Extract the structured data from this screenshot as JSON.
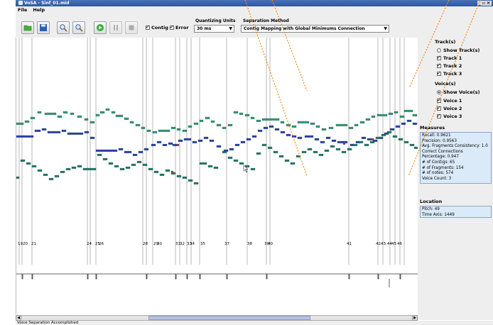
{
  "window": {
    "title": "VoSA - Sinf_01.mid",
    "controls": "_ ▫ ×"
  },
  "menu": {
    "items": [
      "File",
      "Help"
    ]
  },
  "toolbar": {
    "buttons": [
      "open-file",
      "save",
      "zoom-in",
      "zoom-out",
      "play",
      "pause",
      "stop"
    ],
    "contig_label": "Contig",
    "error_label": "Error",
    "contig_checked": true,
    "error_checked": true,
    "quantizing": {
      "label": "Quantizing Units",
      "value": "30 ms"
    },
    "separation": {
      "label": "Separation Method",
      "value": "Contig Mapping with Global Minimums Connection"
    }
  },
  "tracks": {
    "title": "Track(s)",
    "show_label": "Show Track(s)",
    "show_selected": false,
    "items": [
      {
        "label": "Track 1",
        "checked": true
      },
      {
        "label": "Track 2",
        "checked": true
      },
      {
        "label": "Track 3",
        "checked": true
      }
    ]
  },
  "voices": {
    "title": "Voice(s)",
    "show_label": "Show Voice(s)",
    "show_selected": true,
    "items": [
      {
        "label": "Voice 1",
        "checked": true
      },
      {
        "label": "Voice 2",
        "checked": true
      },
      {
        "label": "Voice 3",
        "checked": true
      }
    ]
  },
  "measures": {
    "title": "Measures",
    "lines": [
      "Recall: 0.9621",
      "Precision: 0.9563",
      "Avg. Fragments Consistency: 1.0",
      "Correct Connections",
      "Percentage: 0.947",
      "# of Contigs: 65",
      "# of Fragments: 154",
      "# of notes: 574",
      "Voice Count: 3"
    ]
  },
  "location": {
    "title": "Location",
    "lines": [
      "Pitch: 49",
      "Time Axis: 1449"
    ]
  },
  "plot": {
    "measure_labels": [
      "19",
      "20",
      "21",
      "24",
      "25",
      "26",
      "28",
      "29",
      "30",
      "31",
      "32",
      "33",
      "34",
      "35",
      "37",
      "38",
      "39",
      "40",
      "41",
      "42",
      "43",
      "44",
      "45",
      "46"
    ]
  },
  "status": {
    "text": "Voice Separation Accomplished"
  },
  "colors": {
    "voice_top": "#2e9a78",
    "voice_mid": "#2a3db0",
    "voice_low": "#1f7a6a",
    "error": "#c03030",
    "annotation_arrows": "#f08a1a",
    "panel_info_bg": "#dbeaf8"
  }
}
